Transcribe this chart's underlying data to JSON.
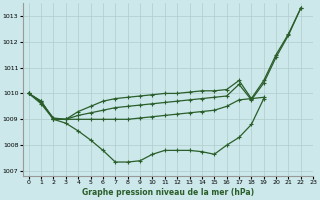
{
  "title": "Graphe pression niveau de la mer (hPa)",
  "xlim": [
    -0.5,
    23
  ],
  "ylim": [
    1006.8,
    1013.5
  ],
  "yticks": [
    1007,
    1008,
    1009,
    1010,
    1011,
    1012,
    1013
  ],
  "xticks": [
    0,
    1,
    2,
    3,
    4,
    5,
    6,
    7,
    8,
    9,
    10,
    11,
    12,
    13,
    14,
    15,
    16,
    17,
    18,
    19,
    20,
    21,
    22,
    23
  ],
  "bg_color": "#cce8ea",
  "grid_color": "#b0cccc",
  "line_color": "#2a5e2a",
  "line1_x": [
    0,
    1,
    2,
    3,
    4,
    5,
    6,
    7,
    8,
    9,
    10,
    11,
    12,
    13,
    14,
    15,
    16,
    17,
    18,
    19,
    20,
    21,
    22
  ],
  "line1_y": [
    1010.0,
    1009.7,
    1009.0,
    1009.0,
    1009.3,
    1009.5,
    1009.7,
    1009.8,
    1009.85,
    1009.9,
    1009.95,
    1010.0,
    1010.0,
    1010.05,
    1010.1,
    1010.1,
    1010.15,
    1010.5,
    1009.8,
    1010.5,
    1011.5,
    1012.3,
    1013.3
  ],
  "line2_x": [
    0,
    1,
    2,
    3,
    4,
    5,
    6,
    7,
    8,
    9,
    10,
    11,
    12,
    13,
    14,
    15,
    16,
    17,
    18,
    19,
    20,
    21,
    22
  ],
  "line2_y": [
    1010.0,
    1009.7,
    1009.0,
    1009.0,
    1009.15,
    1009.25,
    1009.35,
    1009.45,
    1009.5,
    1009.55,
    1009.6,
    1009.65,
    1009.7,
    1009.75,
    1009.8,
    1009.85,
    1009.9,
    1010.35,
    1009.75,
    1010.4,
    1011.4,
    1012.25,
    1013.3
  ],
  "line3_x": [
    0,
    1,
    2,
    3,
    4,
    5,
    6,
    7,
    8,
    9,
    10,
    11,
    12,
    13,
    14,
    15,
    16,
    17,
    18,
    19
  ],
  "line3_y": [
    1010.0,
    1009.65,
    1009.05,
    1009.0,
    1009.0,
    1009.0,
    1009.0,
    1009.0,
    1009.0,
    1009.05,
    1009.1,
    1009.15,
    1009.2,
    1009.25,
    1009.3,
    1009.35,
    1009.5,
    1009.75,
    1009.8,
    1009.85
  ],
  "line4_x": [
    0,
    1,
    2,
    3,
    4,
    5,
    6,
    7,
    8,
    9,
    10,
    11,
    12,
    13,
    14,
    15,
    16,
    17,
    18,
    19
  ],
  "line4_y": [
    1010.0,
    1009.6,
    1009.0,
    1008.85,
    1008.55,
    1008.2,
    1007.8,
    1007.35,
    1007.35,
    1007.4,
    1007.65,
    1007.8,
    1007.8,
    1007.8,
    1007.75,
    1007.65,
    1008.0,
    1008.3,
    1008.8,
    1009.8
  ]
}
